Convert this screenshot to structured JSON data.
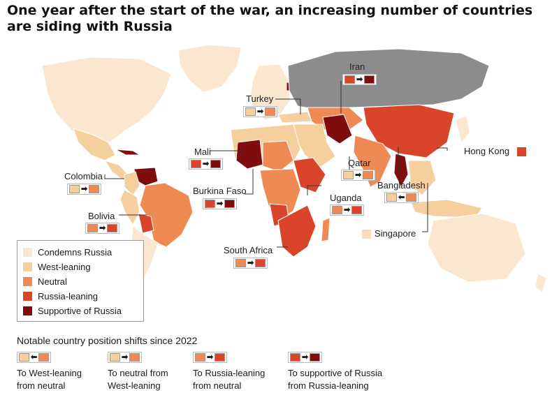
{
  "title": "One year after the start of the war, an increasing number of countries are siding with Russia",
  "colors": {
    "condemns": "#fbe6cf",
    "west": "#f6cf9e",
    "neutral": "#ef8a55",
    "russia_leaning": "#d9452a",
    "supportive": "#7f0d0d",
    "russia": "#8c8c8c"
  },
  "legend": [
    {
      "label": "Condemns Russia",
      "color": "#fbe6cf"
    },
    {
      "label": "West-leaning",
      "color": "#f6cf9e"
    },
    {
      "label": "Neutral",
      "color": "#ef8a55"
    },
    {
      "label": "Russia-leaning",
      "color": "#d9452a"
    },
    {
      "label": "Supportive of Russia",
      "color": "#7f0d0d"
    }
  ],
  "countries": {
    "iran": "Iran",
    "turkey": "Turkey",
    "mali": "Mali",
    "colombia": "Colombia",
    "qatar": "Qatar",
    "hong_kong": "Hong Kong",
    "burkina_faso": "Burkina Faso",
    "uganda": "Uganda",
    "bangladesh": "Bangladesh",
    "bolivia": "Bolivia",
    "singapore": "Singapore",
    "south_africa": "South Africa"
  },
  "shifts_title": "Notable country position shifts since 2022",
  "shift_key": [
    {
      "line1": "To West-leaning",
      "line2": "from neutral"
    },
    {
      "line1": "To neutral from",
      "line2": "West-leaning"
    },
    {
      "line1": "To Russia-leaning",
      "line2": "from neutral"
    },
    {
      "line1": "To supportive of Russia",
      "line2": "from Russia-leaning"
    }
  ],
  "arrows": {
    "right": "➡",
    "left": "⬅"
  }
}
